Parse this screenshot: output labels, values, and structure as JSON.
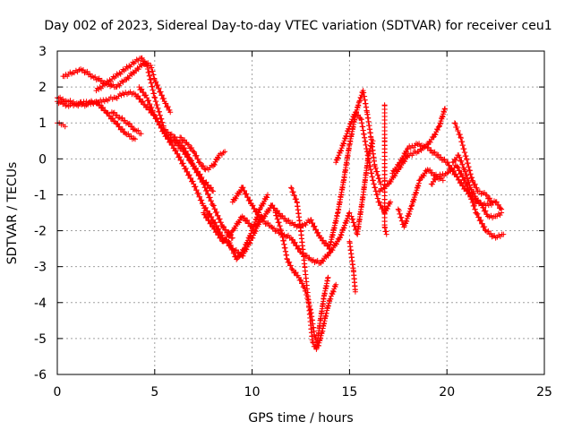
{
  "chart_data": {
    "type": "scatter",
    "title": "Day 002 of 2023, Sidereal Day-to-day VTEC variation (SDTVAR) for receiver ceu1",
    "xlabel": "GPS time / hours",
    "ylabel": "SDTVAR / TECUs",
    "xlim": [
      0,
      25
    ],
    "ylim": [
      -6,
      3
    ],
    "xticks": [
      0,
      5,
      10,
      15,
      20,
      25
    ],
    "yticks": [
      -6,
      -5,
      -4,
      -3,
      -2,
      -1,
      0,
      1,
      2,
      3
    ],
    "grid": true,
    "legend": "none",
    "marker": "plus",
    "color": "#ff0000",
    "series": [
      {
        "name": "trace-1",
        "points": [
          [
            0.0,
            1.7
          ],
          [
            0.5,
            1.6
          ],
          [
            1.0,
            1.55
          ],
          [
            1.5,
            1.5
          ],
          [
            2.0,
            1.6
          ],
          [
            2.5,
            1.3
          ],
          [
            3.0,
            1.0
          ],
          [
            3.5,
            0.7
          ],
          [
            4.0,
            0.55
          ]
        ]
      },
      {
        "name": "trace-2",
        "points": [
          [
            0.0,
            1.6
          ],
          [
            0.5,
            1.5
          ],
          [
            1.0,
            1.5
          ],
          [
            1.5,
            1.6
          ],
          [
            2.0,
            1.55
          ],
          [
            2.5,
            1.65
          ],
          [
            3.0,
            1.7
          ],
          [
            3.5,
            1.85
          ],
          [
            4.0,
            1.8
          ],
          [
            4.5,
            1.5
          ],
          [
            5.0,
            1.2
          ],
          [
            5.5,
            0.7
          ],
          [
            6.0,
            0.5
          ],
          [
            6.5,
            0.2
          ],
          [
            7.0,
            -0.2
          ],
          [
            7.5,
            -0.6
          ],
          [
            8.0,
            -0.9
          ]
        ]
      },
      {
        "name": "trace-3",
        "points": [
          [
            0.0,
            1.0
          ],
          [
            0.2,
            0.95
          ],
          [
            0.4,
            0.9
          ]
        ]
      },
      {
        "name": "trace-4",
        "points": [
          [
            0.3,
            2.3
          ],
          [
            0.8,
            2.4
          ],
          [
            1.2,
            2.5
          ],
          [
            1.8,
            2.3
          ],
          [
            2.5,
            2.1
          ],
          [
            3.0,
            2.0
          ],
          [
            3.5,
            2.2
          ],
          [
            4.0,
            2.45
          ],
          [
            4.5,
            2.7
          ],
          [
            4.8,
            2.6
          ],
          [
            5.0,
            2.2
          ],
          [
            5.5,
            1.6
          ],
          [
            5.8,
            1.3
          ]
        ]
      },
      {
        "name": "trace-5",
        "points": [
          [
            2.0,
            1.9
          ],
          [
            2.5,
            2.1
          ],
          [
            3.0,
            2.3
          ],
          [
            3.5,
            2.5
          ],
          [
            4.0,
            2.7
          ],
          [
            4.3,
            2.8
          ],
          [
            4.6,
            2.6
          ],
          [
            5.0,
            1.7
          ],
          [
            5.5,
            0.8
          ],
          [
            6.0,
            0.6
          ],
          [
            6.5,
            0.3
          ],
          [
            7.0,
            -0.2
          ],
          [
            7.5,
            -0.7
          ],
          [
            8.0,
            -1.3
          ],
          [
            8.5,
            -1.9
          ],
          [
            9.0,
            -2.2
          ]
        ]
      },
      {
        "name": "trace-6",
        "points": [
          [
            2.8,
            1.3
          ],
          [
            3.2,
            1.15
          ],
          [
            3.6,
            1.0
          ],
          [
            4.0,
            0.8
          ],
          [
            4.3,
            0.7
          ]
        ]
      },
      {
        "name": "trace-7",
        "points": [
          [
            4.2,
            2.0
          ],
          [
            4.6,
            1.7
          ],
          [
            5.0,
            1.2
          ],
          [
            5.5,
            0.7
          ],
          [
            6.0,
            0.3
          ],
          [
            6.5,
            -0.2
          ],
          [
            7.0,
            -0.7
          ],
          [
            7.5,
            -1.3
          ],
          [
            8.0,
            -1.7
          ],
          [
            8.5,
            -2.2
          ],
          [
            9.0,
            -2.5
          ],
          [
            9.5,
            -2.7
          ],
          [
            10.0,
            -2.2
          ],
          [
            10.5,
            -1.6
          ]
        ]
      },
      {
        "name": "trace-8",
        "points": [
          [
            6.3,
            0.6
          ],
          [
            6.7,
            0.4
          ],
          [
            7.0,
            0.2
          ],
          [
            7.3,
            -0.1
          ],
          [
            7.6,
            -0.3
          ],
          [
            8.0,
            -0.2
          ],
          [
            8.3,
            0.1
          ],
          [
            8.6,
            0.2
          ]
        ]
      },
      {
        "name": "trace-9",
        "points": [
          [
            7.5,
            -1.5
          ],
          [
            8.0,
            -1.9
          ],
          [
            8.5,
            -2.3
          ],
          [
            9.0,
            -2.0
          ],
          [
            9.5,
            -1.6
          ],
          [
            10.0,
            -1.9
          ],
          [
            10.5,
            -1.7
          ],
          [
            11.0,
            -1.9
          ],
          [
            11.5,
            -2.1
          ],
          [
            12.0,
            -2.2
          ],
          [
            12.5,
            -2.6
          ],
          [
            13.0,
            -2.8
          ],
          [
            13.5,
            -2.9
          ],
          [
            14.0,
            -2.6
          ],
          [
            14.5,
            -2.2
          ],
          [
            15.0,
            -1.5
          ]
        ]
      },
      {
        "name": "trace-10",
        "points": [
          [
            9.0,
            -1.2
          ],
          [
            9.5,
            -0.8
          ],
          [
            10.0,
            -1.3
          ],
          [
            10.5,
            -1.7
          ],
          [
            11.0,
            -1.3
          ],
          [
            11.5,
            -1.6
          ],
          [
            12.0,
            -1.8
          ],
          [
            12.5,
            -1.9
          ],
          [
            13.0,
            -1.7
          ],
          [
            13.5,
            -2.2
          ],
          [
            14.0,
            -2.5
          ]
        ]
      },
      {
        "name": "trace-11",
        "points": [
          [
            8.8,
            -2.3
          ],
          [
            9.2,
            -2.8
          ],
          [
            9.6,
            -2.5
          ],
          [
            10.0,
            -2.0
          ],
          [
            10.4,
            -1.4
          ],
          [
            10.8,
            -1.0
          ]
        ]
      },
      {
        "name": "trace-12",
        "points": [
          [
            11.2,
            -1.5
          ],
          [
            11.5,
            -2.0
          ],
          [
            11.8,
            -2.8
          ],
          [
            12.1,
            -3.1
          ],
          [
            12.4,
            -3.3
          ],
          [
            12.7,
            -3.6
          ],
          [
            13.0,
            -4.2
          ],
          [
            13.2,
            -4.9
          ],
          [
            13.4,
            -5.2
          ],
          [
            13.6,
            -4.8
          ],
          [
            13.8,
            -4.3
          ],
          [
            14.0,
            -3.9
          ],
          [
            14.3,
            -3.5
          ]
        ]
      },
      {
        "name": "trace-13",
        "points": [
          [
            12.0,
            -0.8
          ],
          [
            12.3,
            -1.2
          ],
          [
            12.5,
            -2.0
          ],
          [
            12.7,
            -3.0
          ],
          [
            12.9,
            -4.0
          ],
          [
            13.1,
            -5.1
          ],
          [
            13.3,
            -5.3
          ],
          [
            13.5,
            -4.5
          ],
          [
            13.7,
            -3.8
          ],
          [
            13.9,
            -3.3
          ]
        ]
      },
      {
        "name": "trace-14",
        "points": [
          [
            14.0,
            -2.4
          ],
          [
            14.4,
            -1.5
          ],
          [
            14.7,
            -0.6
          ],
          [
            15.0,
            0.4
          ],
          [
            15.3,
            1.2
          ],
          [
            15.5,
            1.6
          ],
          [
            15.7,
            1.9
          ],
          [
            15.9,
            1.3
          ],
          [
            16.1,
            0.6
          ],
          [
            16.3,
            -0.2
          ],
          [
            16.6,
            -0.7
          ]
        ]
      },
      {
        "name": "trace-15",
        "points": [
          [
            14.3,
            -0.1
          ],
          [
            14.6,
            0.3
          ],
          [
            15.0,
            0.9
          ],
          [
            15.3,
            1.3
          ],
          [
            15.6,
            1.1
          ],
          [
            15.9,
            0.2
          ],
          [
            16.2,
            -0.6
          ],
          [
            16.5,
            -1.2
          ],
          [
            16.8,
            -1.5
          ],
          [
            17.1,
            -1.2
          ]
        ]
      },
      {
        "name": "trace-16",
        "points": [
          [
            15.0,
            -2.3
          ],
          [
            15.2,
            -3.1
          ],
          [
            15.3,
            -3.7
          ]
        ]
      },
      {
        "name": "trace-17",
        "points": [
          [
            15.1,
            -1.6
          ],
          [
            15.4,
            -2.1
          ],
          [
            15.7,
            -1.0
          ],
          [
            16.0,
            0.2
          ],
          [
            16.2,
            0.5
          ]
        ]
      },
      {
        "name": "trace-18",
        "points": [
          [
            16.8,
            1.5
          ],
          [
            16.8,
            0.5
          ],
          [
            16.8,
            -0.6
          ],
          [
            16.8,
            -1.9
          ],
          [
            16.9,
            -2.1
          ]
        ]
      },
      {
        "name": "trace-19",
        "points": [
          [
            16.5,
            -0.9
          ],
          [
            17.0,
            -0.7
          ],
          [
            17.5,
            -0.3
          ],
          [
            18.0,
            0.1
          ],
          [
            18.5,
            0.2
          ],
          [
            19.0,
            0.4
          ],
          [
            19.3,
            0.6
          ],
          [
            19.6,
            0.9
          ],
          [
            19.9,
            1.4
          ]
        ]
      },
      {
        "name": "trace-20",
        "points": [
          [
            17.2,
            -0.4
          ],
          [
            17.6,
            -0.1
          ],
          [
            18.0,
            0.3
          ],
          [
            18.5,
            0.4
          ],
          [
            19.0,
            0.3
          ],
          [
            19.5,
            0.1
          ],
          [
            20.0,
            -0.1
          ],
          [
            20.5,
            -0.5
          ],
          [
            21.0,
            -0.9
          ],
          [
            21.5,
            -1.2
          ],
          [
            22.0,
            -1.3
          ],
          [
            22.5,
            -1.2
          ],
          [
            22.8,
            -1.4
          ]
        ]
      },
      {
        "name": "trace-21",
        "points": [
          [
            17.5,
            -1.4
          ],
          [
            17.8,
            -1.9
          ],
          [
            18.2,
            -1.3
          ],
          [
            18.6,
            -0.6
          ],
          [
            19.0,
            -0.3
          ],
          [
            19.5,
            -0.5
          ],
          [
            20.0,
            -0.4
          ],
          [
            20.5,
            -0.2
          ],
          [
            21.0,
            -0.7
          ],
          [
            21.5,
            -1.5
          ],
          [
            22.0,
            -2.0
          ],
          [
            22.5,
            -2.2
          ],
          [
            22.9,
            -2.1
          ]
        ]
      },
      {
        "name": "trace-22",
        "points": [
          [
            19.2,
            -0.7
          ],
          [
            19.5,
            -0.5
          ],
          [
            19.8,
            -0.6
          ]
        ]
      },
      {
        "name": "trace-23",
        "points": [
          [
            20.4,
            1.0
          ],
          [
            20.7,
            0.6
          ],
          [
            21.0,
            0.0
          ],
          [
            21.3,
            -0.6
          ],
          [
            21.6,
            -0.9
          ],
          [
            22.0,
            -1.0
          ],
          [
            22.3,
            -1.2
          ]
        ]
      },
      {
        "name": "trace-24",
        "points": [
          [
            20.3,
            -0.1
          ],
          [
            20.6,
            0.1
          ],
          [
            20.9,
            -0.3
          ],
          [
            21.2,
            -0.8
          ],
          [
            21.5,
            -1.1
          ],
          [
            21.8,
            -1.3
          ],
          [
            22.1,
            -1.6
          ],
          [
            22.5,
            -1.6
          ],
          [
            22.8,
            -1.5
          ]
        ]
      }
    ]
  }
}
